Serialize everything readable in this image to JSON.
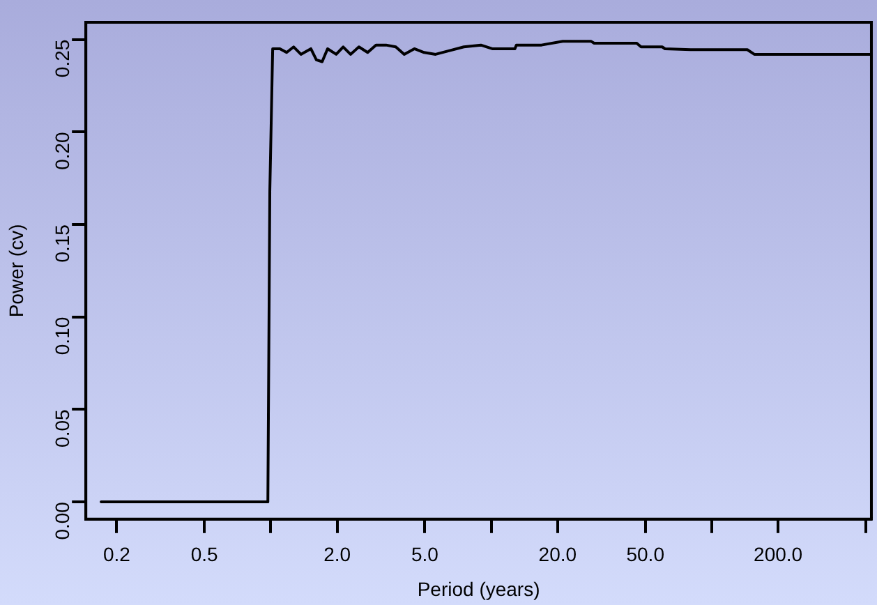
{
  "chart_data": {
    "type": "line",
    "xlabel": "Period (years)",
    "ylabel": "Power (cv)",
    "log": "x",
    "xlim": [
      0.145,
      530
    ],
    "ylim": [
      -0.0093,
      0.2593
    ],
    "xticks": [
      0.2,
      0.5,
      {
        "value": 1,
        "label": null
      },
      {
        "value": 2,
        "label": "2.0"
      },
      {
        "value": 5,
        "label": "5.0"
      },
      {
        "value": 10,
        "label": null
      },
      {
        "value": 20,
        "label": "20.0"
      },
      {
        "value": 50,
        "label": "50.0"
      },
      {
        "value": 100,
        "label": null
      },
      {
        "value": 200,
        "label": "200.0"
      },
      {
        "value": 500,
        "label": null
      }
    ],
    "yticks": [
      {
        "value": 0,
        "label": "0.00"
      },
      0.05,
      {
        "value": 0.1,
        "label": "0.10"
      },
      0.15,
      {
        "value": 0.2,
        "label": "0.20"
      },
      0.25
    ],
    "grid": false,
    "legend": false,
    "marker": "none",
    "line_style": "solid",
    "series": [
      {
        "color": "#000000",
        "x": [
          0.17,
          0.97,
          0.99,
          1.02,
          1.1,
          1.18,
          1.27,
          1.37,
          1.52,
          1.61,
          1.71,
          1.81,
          1.98,
          2.13,
          2.3,
          2.51,
          2.75,
          3.0,
          3.33,
          3.69,
          4.03,
          4.48,
          4.96,
          5.59,
          6.47,
          7.51,
          8.97,
          10.1,
          12.8,
          13.0,
          16.9,
          21.1,
          28.4,
          29.3,
          45.7,
          47.8,
          59.6,
          61.4,
          80.2,
          145,
          156,
          530
        ],
        "values": [
          0,
          0,
          0.168,
          0.245,
          0.245,
          0.243,
          0.246,
          0.242,
          0.245,
          0.239,
          0.238,
          0.245,
          0.242,
          0.246,
          0.242,
          0.246,
          0.243,
          0.247,
          0.247,
          0.246,
          0.242,
          0.245,
          0.243,
          0.242,
          0.244,
          0.246,
          0.247,
          0.245,
          0.245,
          0.247,
          0.247,
          0.249,
          0.249,
          0.248,
          0.248,
          0.246,
          0.246,
          0.245,
          0.2445,
          0.2445,
          0.242,
          0.242
        ]
      }
    ]
  }
}
